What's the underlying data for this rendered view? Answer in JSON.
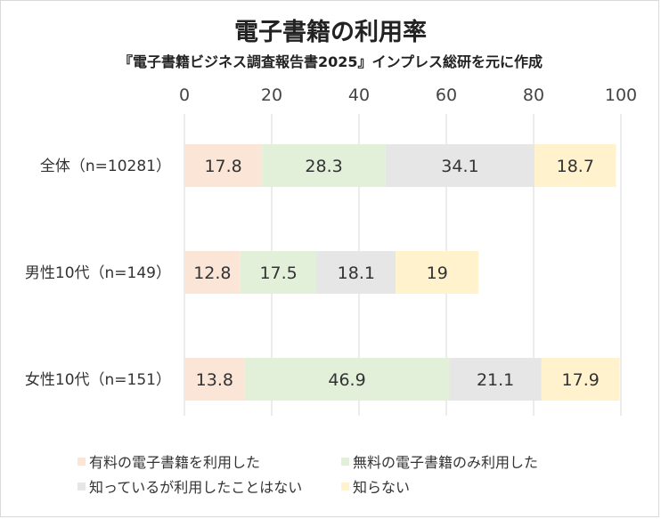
{
  "chart_data": {
    "type": "bar",
    "orientation": "horizontal",
    "stacked": true,
    "title": "電子書籍の利用率",
    "subtitle": "『電子書籍ビジネス調査報告書2025』インプレス総研を元に作成",
    "categories": [
      "全体（n=10281）",
      "男性10代（n=149）",
      "女性10代（n=151）"
    ],
    "xlim": [
      0,
      100
    ],
    "xticks": [
      0,
      20,
      40,
      60,
      80,
      100
    ],
    "grid": true,
    "legend_position": "bottom",
    "series": [
      {
        "name": "有料の電子書籍を利用した",
        "color": "#fbe5d6",
        "values": [
          17.8,
          12.8,
          13.8
        ]
      },
      {
        "name": "無料の電子書籍のみ利用した",
        "color": "#e2f0d9",
        "values": [
          28.3,
          17.5,
          46.9
        ]
      },
      {
        "name": "知っているが利用したことはない",
        "color": "#e7e6e6",
        "values": [
          34.1,
          18.1,
          21.1
        ]
      },
      {
        "name": "知らない",
        "color": "#fff2cc",
        "values": [
          18.7,
          19,
          17.9
        ]
      }
    ]
  }
}
